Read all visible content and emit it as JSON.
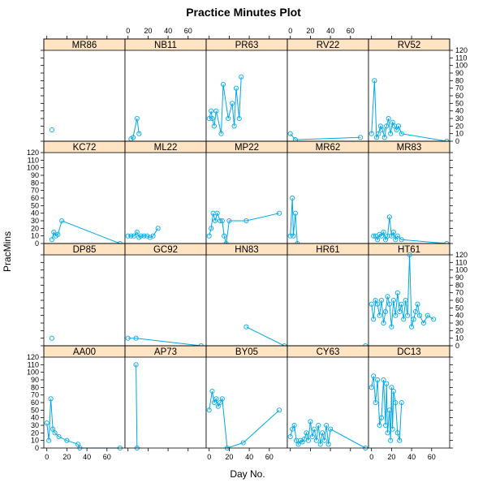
{
  "chart_data": {
    "type": "line",
    "title": "Practice Minutes Plot",
    "xlabel": "Day No.",
    "ylabel": "PracMins",
    "xlim": [
      -3,
      78
    ],
    "ylim": [
      0,
      120
    ],
    "x_ticks": [
      0,
      20,
      40,
      60
    ],
    "y_ticks": [
      0,
      10,
      20,
      30,
      40,
      50,
      60,
      70,
      80,
      90,
      100,
      110,
      120
    ],
    "layout": {
      "columns": 5,
      "rows": 4
    },
    "colors": {
      "line": "#00A8E8",
      "strip": "#FFE4C4",
      "border": "#000000",
      "background": "#FFFFFF"
    },
    "panels": [
      {
        "name": "MR86",
        "x": [
          5
        ],
        "y": [
          15
        ]
      },
      {
        "name": "NB11",
        "x": [
          3,
          5,
          9,
          11
        ],
        "y": [
          3,
          5,
          30,
          10
        ]
      },
      {
        "name": "PR63",
        "x": [
          0,
          2,
          3,
          5,
          7,
          12,
          14,
          19,
          23,
          25,
          27,
          30,
          32
        ],
        "y": [
          30,
          40,
          30,
          20,
          40,
          10,
          75,
          30,
          50,
          20,
          70,
          30,
          85
        ]
      },
      {
        "name": "RV22",
        "x": [
          0,
          5,
          70
        ],
        "y": [
          10,
          2,
          5
        ]
      },
      {
        "name": "RV52",
        "x": [
          0,
          3,
          5,
          7,
          9,
          11,
          13,
          15,
          17,
          19,
          21,
          23,
          25,
          27,
          30,
          75
        ],
        "y": [
          10,
          80,
          5,
          10,
          20,
          15,
          5,
          20,
          30,
          10,
          25,
          20,
          15,
          20,
          10,
          0
        ]
      },
      {
        "name": "KC72",
        "x": [
          5,
          7,
          9,
          11,
          15,
          73
        ],
        "y": [
          5,
          15,
          10,
          12,
          30,
          0
        ]
      },
      {
        "name": "ML22",
        "x": [
          0,
          3,
          6,
          9,
          11,
          13,
          16,
          19,
          22,
          25,
          30
        ],
        "y": [
          10,
          10,
          10,
          15,
          8,
          10,
          10,
          10,
          8,
          10,
          20
        ]
      },
      {
        "name": "MP22",
        "x": [
          0,
          2,
          4,
          6,
          8,
          11,
          13,
          15,
          17,
          20,
          37,
          70
        ],
        "y": [
          10,
          20,
          40,
          30,
          40,
          30,
          30,
          10,
          0,
          30,
          30,
          40
        ]
      },
      {
        "name": "MR62",
        "x": [
          0,
          2,
          3,
          5,
          7
        ],
        "y": [
          10,
          60,
          10,
          40,
          0
        ]
      },
      {
        "name": "MR83",
        "x": [
          2,
          4,
          6,
          8,
          10,
          12,
          14,
          16,
          18,
          20,
          22,
          24,
          26,
          30,
          75
        ],
        "y": [
          10,
          10,
          5,
          12,
          10,
          15,
          5,
          10,
          35,
          10,
          15,
          5,
          10,
          5,
          0
        ]
      },
      {
        "name": "DP85",
        "x": [
          5
        ],
        "y": [
          10
        ]
      },
      {
        "name": "GC92",
        "x": [
          0,
          8,
          73
        ],
        "y": [
          10,
          10,
          0
        ]
      },
      {
        "name": "HN83",
        "x": [
          37,
          75
        ],
        "y": [
          25,
          0
        ]
      },
      {
        "name": "HR61",
        "x": [
          75
        ],
        "y": [
          0
        ]
      },
      {
        "name": "HT61",
        "x": [
          0,
          2,
          4,
          6,
          8,
          10,
          12,
          14,
          16,
          18,
          20,
          22,
          24,
          26,
          28,
          30,
          32,
          34,
          36,
          38,
          40,
          42,
          44,
          46,
          48,
          52,
          56,
          62
        ],
        "y": [
          55,
          35,
          60,
          55,
          40,
          60,
          30,
          45,
          65,
          55,
          25,
          60,
          40,
          70,
          45,
          55,
          35,
          60,
          40,
          120,
          25,
          35,
          45,
          55,
          40,
          30,
          40,
          35
        ]
      },
      {
        "name": "AA00",
        "x": [
          0,
          2,
          4,
          6,
          8,
          12,
          20,
          31,
          33,
          73
        ],
        "y": [
          33,
          10,
          65,
          25,
          20,
          15,
          10,
          5,
          0,
          0
        ]
      },
      {
        "name": "AP73",
        "x": [
          8,
          9
        ],
        "y": [
          110,
          0
        ]
      },
      {
        "name": "BY05",
        "x": [
          0,
          3,
          5,
          7,
          9,
          11,
          13,
          18,
          34,
          70
        ],
        "y": [
          50,
          75,
          60,
          65,
          55,
          60,
          65,
          0,
          7,
          50
        ]
      },
      {
        "name": "CY63",
        "x": [
          0,
          2,
          4,
          6,
          8,
          10,
          12,
          14,
          16,
          18,
          20,
          22,
          24,
          26,
          28,
          30,
          32,
          34,
          36,
          38,
          40,
          75
        ],
        "y": [
          15,
          25,
          30,
          10,
          5,
          10,
          8,
          12,
          20,
          10,
          35,
          15,
          25,
          10,
          30,
          5,
          20,
          10,
          30,
          5,
          25,
          0
        ]
      },
      {
        "name": "DC13",
        "x": [
          0,
          2,
          4,
          6,
          8,
          10,
          12,
          14,
          15,
          16,
          18,
          19,
          20,
          21,
          22,
          24,
          26,
          28,
          30
        ],
        "y": [
          80,
          95,
          60,
          90,
          30,
          40,
          90,
          30,
          85,
          20,
          50,
          10,
          80,
          25,
          75,
          60,
          20,
          10,
          60
        ]
      }
    ]
  }
}
